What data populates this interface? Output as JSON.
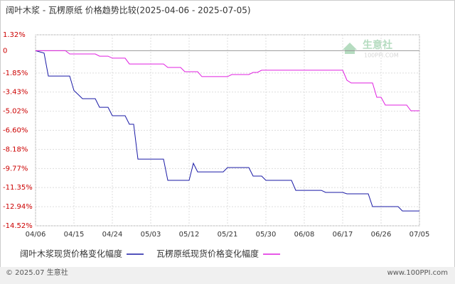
{
  "chart_data": {
    "type": "line",
    "title": "阔叶木浆 - 瓦楞原纸 价格趋势比较(2025-04-06 - 2025-07-05)",
    "xlim": [
      "04/06",
      "07/05"
    ],
    "xticks": [
      "04/06",
      "04/15",
      "04/24",
      "05/03",
      "05/12",
      "05/21",
      "05/30",
      "06/08",
      "06/17",
      "06/26",
      "07/05"
    ],
    "ylim": [
      -14.52,
      1.32
    ],
    "yticks": [
      {
        "value": 1.32,
        "label": "1.32%"
      },
      0,
      {
        "value": -1.85,
        "label": "-1.85%"
      },
      {
        "value": -3.43,
        "label": "-3.43%"
      },
      {
        "value": -5.02,
        "label": "-5.02%"
      },
      {
        "value": -6.6,
        "label": "-6.60%"
      },
      {
        "value": -8.18,
        "label": "-8.18%"
      },
      {
        "value": -9.77,
        "label": "-9.77%"
      },
      {
        "value": -11.35,
        "label": "-11.35%"
      },
      {
        "value": -12.94,
        "label": "-12.94%"
      },
      {
        "value": -14.52,
        "label": "-14.52%"
      }
    ],
    "grid": true,
    "series": [
      {
        "name": "阔叶木浆现货价格变化幅度",
        "color": "#1a1aa6",
        "x": [
          "04/06",
          "04/08",
          "04/09",
          "04/14",
          "04/15",
          "04/16",
          "04/17",
          "04/20",
          "04/21",
          "04/23",
          "04/24",
          "04/27",
          "04/28",
          "04/29",
          "04/30",
          "05/06",
          "05/07",
          "05/12",
          "05/13",
          "05/14",
          "05/20",
          "05/21",
          "05/26",
          "05/27",
          "05/29",
          "05/30",
          "06/05",
          "06/06",
          "06/12",
          "06/13",
          "06/17",
          "06/18",
          "06/23",
          "06/24",
          "06/30",
          "07/01",
          "07/05"
        ],
        "values": [
          0,
          -0.2,
          -2.1,
          -2.1,
          -3.3,
          -3.63,
          -3.98,
          -3.98,
          -4.69,
          -4.69,
          -5.39,
          -5.39,
          -6.1,
          -6.1,
          -8.99,
          -8.99,
          -10.75,
          -10.75,
          -9.34,
          -10.05,
          -10.05,
          -9.69,
          -9.69,
          -10.4,
          -10.4,
          -10.75,
          -10.75,
          -11.58,
          -11.58,
          -11.75,
          -11.75,
          -11.87,
          -11.87,
          -12.93,
          -12.93,
          -13.29,
          -13.29
        ]
      },
      {
        "name": "瓦楞原纸现货价格变化幅度",
        "color": "#e020e0",
        "x": [
          "04/06",
          "04/13",
          "04/14",
          "04/20",
          "04/21",
          "04/23",
          "04/24",
          "04/27",
          "04/28",
          "05/06",
          "05/07",
          "05/10",
          "05/11",
          "05/14",
          "05/15",
          "05/21",
          "05/22",
          "05/26",
          "05/27",
          "05/28",
          "05/29",
          "06/17",
          "06/18",
          "06/19",
          "06/24",
          "06/25",
          "06/26",
          "06/27",
          "07/02",
          "07/03",
          "07/05"
        ],
        "values": [
          0,
          0,
          -0.27,
          -0.27,
          -0.45,
          -0.45,
          -0.62,
          -0.62,
          -1.1,
          -1.1,
          -1.39,
          -1.39,
          -1.74,
          -1.74,
          -2.15,
          -2.15,
          -1.98,
          -1.98,
          -1.8,
          -1.8,
          -1.62,
          -1.62,
          -2.45,
          -2.68,
          -2.68,
          -3.86,
          -3.86,
          -4.51,
          -4.51,
          -4.98,
          -4.98
        ]
      }
    ]
  },
  "watermark": {
    "name": "生意社",
    "site": "100PPI.COM"
  },
  "footer": {
    "copyright": "© 2025.07 生意社",
    "site": "www.100PPI.com"
  }
}
